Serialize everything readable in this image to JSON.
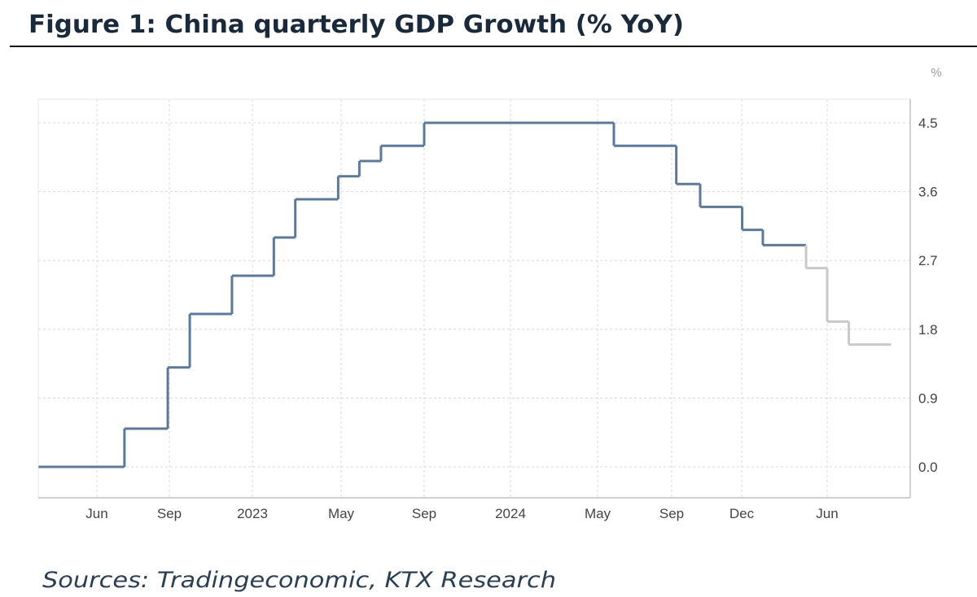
{
  "title": "Figure 1: China quarterly GDP Growth (% YoY)",
  "source": "Sources: Tradingeconomic, KTX Research",
  "chart_data": {
    "type": "line",
    "line_shape": "step",
    "title": "Figure 1: China quarterly GDP Growth (% YoY)",
    "ylabel": "%",
    "xlabel": "",
    "ylim": [
      -0.4,
      4.8
    ],
    "yticks": [
      0.0,
      0.9,
      1.8,
      2.7,
      3.6,
      4.5
    ],
    "ytick_labels": [
      "0.0",
      "0.9",
      "1.8",
      "2.7",
      "3.6",
      "4.5"
    ],
    "y_axis_side": "right",
    "grid": true,
    "xticks": [
      {
        "date": "2022-06-01",
        "label": "Jun"
      },
      {
        "date": "2022-09-01",
        "label": "Sep"
      },
      {
        "date": "2023-01-01",
        "label": "2023"
      },
      {
        "date": "2023-05-01",
        "label": "May"
      },
      {
        "date": "2023-09-01",
        "label": "Sep"
      },
      {
        "date": "2024-01-01",
        "label": "2024"
      },
      {
        "date": "2024-05-01",
        "label": "May"
      },
      {
        "date": "2024-09-01",
        "label": "Sep"
      },
      {
        "date": "2024-12-01",
        "label": "Dec"
      },
      {
        "date": "2025-06-01",
        "label": "Jun"
      }
    ],
    "xlim": [
      "2022-03-19",
      "2025-11-20"
    ],
    "colors": {
      "primary": "#5c7a98",
      "secondary": "#c9c9c9"
    },
    "steps": [
      {
        "start": "2022-03-19",
        "value": 0.0,
        "color": "#5c7a98"
      },
      {
        "start": "2022-07-06",
        "value": 0.5,
        "color": "#5c7a98"
      },
      {
        "start": "2022-08-30",
        "value": 1.3,
        "color": "#5c7a98"
      },
      {
        "start": "2022-10-01",
        "value": 2.0,
        "color": "#5c7a98"
      },
      {
        "start": "2022-12-02",
        "value": 2.5,
        "color": "#5c7a98"
      },
      {
        "start": "2023-01-30",
        "value": 3.0,
        "color": "#5c7a98"
      },
      {
        "start": "2023-02-28",
        "value": 3.5,
        "color": "#5c7a98"
      },
      {
        "start": "2023-04-27",
        "value": 3.8,
        "color": "#5c7a98"
      },
      {
        "start": "2023-05-28",
        "value": 4.0,
        "color": "#5c7a98"
      },
      {
        "start": "2023-06-29",
        "value": 4.2,
        "color": "#5c7a98"
      },
      {
        "start": "2023-09-01",
        "value": 4.5,
        "color": "#5c7a98"
      },
      {
        "start": "2024-05-28",
        "value": 4.2,
        "color": "#5c7a98"
      },
      {
        "start": "2024-09-07",
        "value": 3.7,
        "color": "#5c7a98"
      },
      {
        "start": "2024-10-08",
        "value": 3.4,
        "color": "#5c7a98"
      },
      {
        "start": "2024-12-02",
        "value": 3.1,
        "color": "#5c7a98"
      },
      {
        "start": "2025-01-15",
        "value": 2.9,
        "color": "#5c7a98"
      },
      {
        "start": "2025-04-17",
        "value": 2.6,
        "color": "#c9c9c9"
      },
      {
        "start": "2025-06-01",
        "value": 1.9,
        "color": "#c9c9c9"
      },
      {
        "start": "2025-07-17",
        "value": 1.6,
        "color": "#c9c9c9"
      }
    ],
    "end": "2025-10-15"
  }
}
